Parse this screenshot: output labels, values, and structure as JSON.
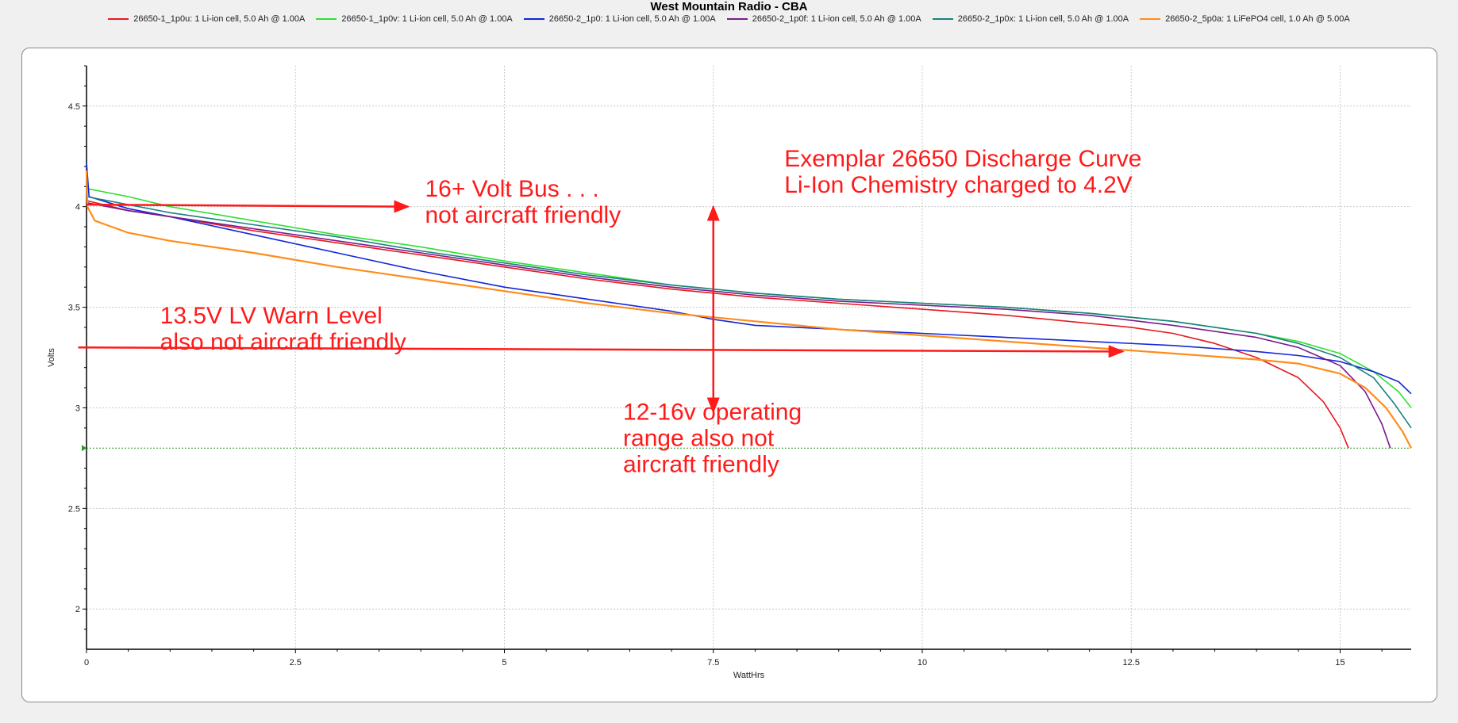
{
  "window": {
    "title": "West Mountain Radio - CBA"
  },
  "legend": [
    {
      "label": "26650-1_1p0u: 1 Li-ion cell, 5.0 Ah @ 1.00A",
      "color": "#e8181f"
    },
    {
      "label": "26650-1_1p0v: 1 Li-ion cell, 5.0 Ah @ 1.00A",
      "color": "#2fe02f"
    },
    {
      "label": "26650-2_1p0: 1 Li-ion cell, 5.0 Ah @ 1.00A",
      "color": "#1226d8"
    },
    {
      "label": "26650-2_1p0f: 1 Li-ion cell, 5.0 Ah @ 1.00A",
      "color": "#7a1a8a"
    },
    {
      "label": "26650-2_1p0x: 1 Li-ion cell, 5.0 Ah @ 1.00A",
      "color": "#1a8080"
    },
    {
      "label": "26650-2_5p0a: 1 LiFePO4 cell, 1.0 Ah @ 5.00A",
      "color": "#ff8c1a"
    }
  ],
  "chart_data": {
    "type": "line",
    "title": "West Mountain Radio - CBA",
    "xlabel": "WattHrs",
    "ylabel": "Volts",
    "xlim": [
      0,
      15.85
    ],
    "ylim": [
      1.8,
      4.7
    ],
    "x_ticks": [
      0,
      2.5,
      5,
      7.5,
      10,
      12.5,
      15
    ],
    "x_tick_labels": [
      "0",
      "2.5",
      "5",
      "7.5",
      "10",
      "12.5",
      "15"
    ],
    "y_ticks": [
      2,
      2.5,
      3,
      3.5,
      4,
      4.5
    ],
    "y_tick_labels": [
      "2",
      "2.5",
      "3",
      "3.5",
      "4",
      "4.5"
    ],
    "grid": true,
    "legend_position": "top",
    "cutoff_line": {
      "y": 2.8,
      "color": "#2a9a2a"
    },
    "series": [
      {
        "name": "26650-1_1p0u: 1 Li-ion cell, 5.0 Ah @ 1.00A",
        "color": "#e8181f",
        "points": [
          [
            0,
            4.03
          ],
          [
            0.5,
            3.98
          ],
          [
            1,
            3.95
          ],
          [
            2,
            3.88
          ],
          [
            3,
            3.82
          ],
          [
            4,
            3.76
          ],
          [
            5,
            3.7
          ],
          [
            6,
            3.64
          ],
          [
            7,
            3.59
          ],
          [
            8,
            3.55
          ],
          [
            9,
            3.52
          ],
          [
            10,
            3.49
          ],
          [
            11,
            3.46
          ],
          [
            12,
            3.42
          ],
          [
            12.5,
            3.4
          ],
          [
            13,
            3.37
          ],
          [
            13.5,
            3.32
          ],
          [
            14,
            3.25
          ],
          [
            14.5,
            3.15
          ],
          [
            14.8,
            3.03
          ],
          [
            15,
            2.9
          ],
          [
            15.1,
            2.8
          ]
        ]
      },
      {
        "name": "26650-1_1p0v: 1 Li-ion cell, 5.0 Ah @ 1.00A",
        "color": "#2fe02f",
        "points": [
          [
            0,
            4.09
          ],
          [
            0.5,
            4.05
          ],
          [
            1,
            4.0
          ],
          [
            2,
            3.93
          ],
          [
            3,
            3.86
          ],
          [
            4,
            3.8
          ],
          [
            5,
            3.73
          ],
          [
            6,
            3.67
          ],
          [
            7,
            3.61
          ],
          [
            8,
            3.57
          ],
          [
            9,
            3.54
          ],
          [
            10,
            3.52
          ],
          [
            11,
            3.5
          ],
          [
            12,
            3.47
          ],
          [
            13,
            3.43
          ],
          [
            14,
            3.37
          ],
          [
            14.5,
            3.33
          ],
          [
            15,
            3.27
          ],
          [
            15.4,
            3.18
          ],
          [
            15.7,
            3.08
          ],
          [
            15.85,
            3.0
          ]
        ]
      },
      {
        "name": "26650-2_1p0: 1 Li-ion cell, 5.0 Ah @ 1.00A",
        "color": "#1226d8",
        "points": [
          [
            0,
            4.22
          ],
          [
            0.03,
            4.05
          ],
          [
            0.5,
            3.99
          ],
          [
            1,
            3.95
          ],
          [
            2,
            3.86
          ],
          [
            3,
            3.77
          ],
          [
            4,
            3.68
          ],
          [
            5,
            3.6
          ],
          [
            6,
            3.54
          ],
          [
            7,
            3.48
          ],
          [
            7.5,
            3.44
          ],
          [
            8,
            3.41
          ],
          [
            9,
            3.39
          ],
          [
            10,
            3.37
          ],
          [
            11,
            3.35
          ],
          [
            12,
            3.33
          ],
          [
            13,
            3.31
          ],
          [
            14,
            3.28
          ],
          [
            14.5,
            3.26
          ],
          [
            15,
            3.23
          ],
          [
            15.4,
            3.18
          ],
          [
            15.7,
            3.13
          ],
          [
            15.85,
            3.07
          ]
        ]
      },
      {
        "name": "26650-2_1p0f: 1 Li-ion cell, 5.0 Ah @ 1.00A",
        "color": "#7a1a8a",
        "points": [
          [
            0,
            4.02
          ],
          [
            0.5,
            3.98
          ],
          [
            1,
            3.95
          ],
          [
            2,
            3.89
          ],
          [
            3,
            3.83
          ],
          [
            4,
            3.77
          ],
          [
            5,
            3.71
          ],
          [
            6,
            3.65
          ],
          [
            7,
            3.6
          ],
          [
            8,
            3.56
          ],
          [
            9,
            3.53
          ],
          [
            10,
            3.51
          ],
          [
            11,
            3.49
          ],
          [
            12,
            3.46
          ],
          [
            13,
            3.41
          ],
          [
            14,
            3.35
          ],
          [
            14.5,
            3.3
          ],
          [
            15,
            3.21
          ],
          [
            15.3,
            3.08
          ],
          [
            15.5,
            2.92
          ],
          [
            15.6,
            2.8
          ]
        ]
      },
      {
        "name": "26650-2_1p0x: 1 Li-ion cell, 5.0 Ah @ 1.00A",
        "color": "#1a8080",
        "points": [
          [
            0,
            4.05
          ],
          [
            0.5,
            4.01
          ],
          [
            1,
            3.97
          ],
          [
            2,
            3.91
          ],
          [
            3,
            3.85
          ],
          [
            4,
            3.78
          ],
          [
            5,
            3.72
          ],
          [
            6,
            3.66
          ],
          [
            7,
            3.61
          ],
          [
            8,
            3.57
          ],
          [
            9,
            3.54
          ],
          [
            10,
            3.52
          ],
          [
            11,
            3.5
          ],
          [
            12,
            3.47
          ],
          [
            13,
            3.43
          ],
          [
            14,
            3.37
          ],
          [
            14.5,
            3.32
          ],
          [
            15,
            3.25
          ],
          [
            15.4,
            3.15
          ],
          [
            15.65,
            3.02
          ],
          [
            15.85,
            2.9
          ]
        ]
      },
      {
        "name": "26650-2_5p0a: 1 LiFePO4 cell, 1.0 Ah @ 5.00A",
        "color": "#ff8c1a",
        "points": [
          [
            0,
            4.18
          ],
          [
            0.01,
            4.0
          ],
          [
            0.1,
            3.93
          ],
          [
            0.5,
            3.87
          ],
          [
            1,
            3.83
          ],
          [
            2,
            3.77
          ],
          [
            3,
            3.7
          ],
          [
            4,
            3.64
          ],
          [
            5,
            3.58
          ],
          [
            6,
            3.52
          ],
          [
            7,
            3.47
          ],
          [
            7.5,
            3.45
          ],
          [
            8,
            3.43
          ],
          [
            9,
            3.39
          ],
          [
            10,
            3.36
          ],
          [
            11,
            3.33
          ],
          [
            12,
            3.3
          ],
          [
            13,
            3.27
          ],
          [
            14,
            3.24
          ],
          [
            14.5,
            3.22
          ],
          [
            15,
            3.17
          ],
          [
            15.3,
            3.1
          ],
          [
            15.55,
            3.0
          ],
          [
            15.75,
            2.88
          ],
          [
            15.85,
            2.8
          ]
        ]
      }
    ],
    "annotations": [
      {
        "id": "bus",
        "lines": [
          "16+ Volt Bus . . .",
          "not aircraft friendly"
        ]
      },
      {
        "id": "lv-warn",
        "lines": [
          "13.5V LV Warn Level",
          "also not aircraft friendly"
        ]
      },
      {
        "id": "exemplar",
        "lines": [
          "Exemplar 26650 Discharge Curve",
          "Li-Ion Chemistry charged to 4.2V"
        ]
      },
      {
        "id": "operating",
        "lines": [
          "12-16v operating",
          "range also not",
          "aircraft friendly"
        ]
      }
    ],
    "annotation_arrows": [
      {
        "id": "bus-arrow",
        "from": [
          0,
          4.01
        ],
        "to": [
          3.85,
          4.0
        ],
        "heads": "end"
      },
      {
        "id": "lv-arrow",
        "from": [
          -0.1,
          3.3
        ],
        "to": [
          12.4,
          3.28
        ],
        "heads": "end"
      },
      {
        "id": "range-arrow",
        "from": [
          7.5,
          2.98
        ],
        "to": [
          7.5,
          4.0
        ],
        "heads": "both"
      }
    ]
  }
}
